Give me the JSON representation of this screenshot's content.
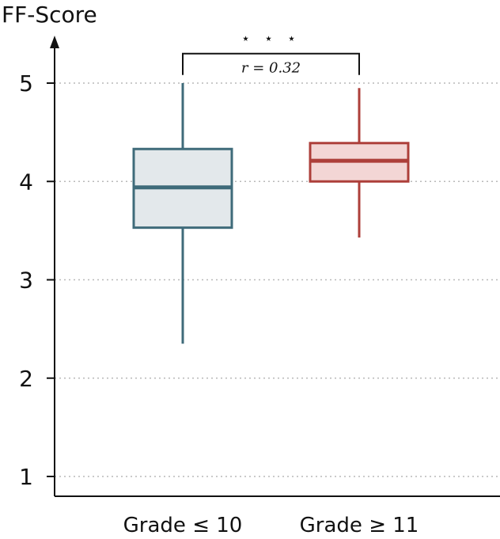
{
  "colors": {
    "axis": "#111111",
    "grid": "#b9b9b9",
    "box1_stroke": "#3f6b7a",
    "box1_fill": "#e3e8eb",
    "box2_stroke": "#ad3f3a",
    "box2_fill": "#f3d6d5"
  },
  "chart_data": {
    "type": "box",
    "ylabel": "FF-Score",
    "ylim": [
      0.8,
      5.6
    ],
    "yticks": [
      1,
      2,
      3,
      4,
      5
    ],
    "ytick_labels": [
      "1",
      "2",
      "3",
      "4",
      "5"
    ],
    "grid": "horizontal dotted",
    "categories": [
      "Grade ≤ 10",
      "Grade ≥ 11"
    ],
    "boxes": [
      {
        "name": "Grade ≤ 10",
        "whisker_low": 2.35,
        "q1": 3.53,
        "median": 3.94,
        "q3": 4.33,
        "whisker_high": 5.0
      },
      {
        "name": "Grade ≥ 11",
        "whisker_low": 3.43,
        "q1": 4.0,
        "median": 4.21,
        "q3": 4.39,
        "whisker_high": 4.95
      }
    ],
    "annotation": {
      "stars": "⋆ ⋆ ⋆",
      "effect_size": "r = 0.32",
      "bracket_y": 5.3
    }
  }
}
